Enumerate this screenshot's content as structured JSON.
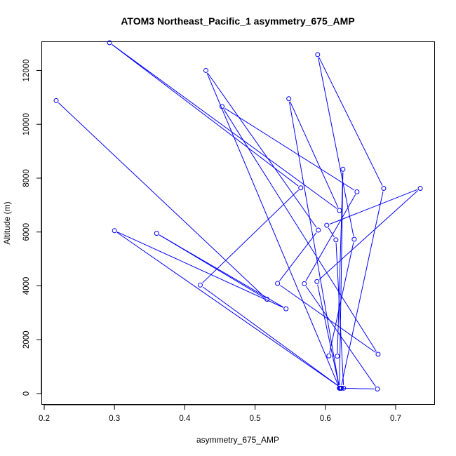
{
  "chart_data": {
    "type": "scatter",
    "title": "ATOM3 Northeast_Pacific_1 asymmetry_675_AMP",
    "xlabel": "asymmetry_675_AMP",
    "ylabel": "Altitude (m)",
    "xlim": [
      0.2,
      0.75
    ],
    "ylim": [
      -100,
      13000
    ],
    "x_ticks": [
      "0.2",
      "0.3",
      "0.4",
      "0.5",
      "0.6",
      "0.7"
    ],
    "x_tick_values": [
      0.2,
      0.3,
      0.4,
      0.5,
      0.6,
      0.7
    ],
    "y_ticks": [
      "0",
      "2000",
      "4000",
      "6000",
      "8000",
      "10000",
      "12000"
    ],
    "y_tick_values": [
      0,
      2000,
      4000,
      6000,
      8000,
      10000,
      12000
    ],
    "grid": false,
    "marker": "open-circle",
    "connected": true,
    "color": "#0000ff",
    "series": [
      {
        "x": [
          0.217,
          0.517,
          0.36,
          0.544,
          0.3,
          0.623,
          0.422,
          0.565,
          0.293,
          0.62,
          0.548,
          0.62,
          0.43,
          0.59,
          0.532,
          0.675,
          0.453,
          0.645,
          0.57,
          0.674,
          0.622,
          0.683,
          0.589,
          0.641,
          0.605,
          0.617,
          0.625,
          0.62,
          0.588,
          0.735,
          0.602,
          0.615,
          0.626,
          0.621
        ],
        "y": [
          10880,
          3500,
          5950,
          3150,
          6050,
          200,
          4030,
          7640,
          13030,
          6800,
          10950,
          200,
          12000,
          6070,
          4090,
          1460,
          10660,
          7490,
          4080,
          170,
          200,
          7620,
          12590,
          5730,
          1400,
          1390,
          8330,
          200,
          4160,
          7620,
          6250,
          5710,
          200,
          200
        ]
      }
    ]
  }
}
